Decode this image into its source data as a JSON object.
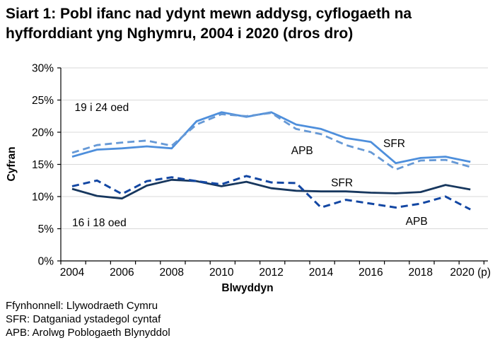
{
  "header": {
    "title_line1": "Siart 1: Pobl ifanc nad ydynt mewn addysg, cyflogaeth na",
    "title_line2": "hyfforddiant yng Nghymru, 2004 i 2020 (dros dro)"
  },
  "chart_data": {
    "type": "line",
    "title": "Siart 1: Pobl ifanc nad ydynt mewn addysg, cyflogaeth na hyfforddiant yng Nghymru, 2004 i 2020 (dros dro)",
    "xlabel": "Blwyddyn",
    "ylabel": "Cyfran",
    "x": [
      2004,
      2005,
      2006,
      2007,
      2008,
      2009,
      2010,
      2011,
      2012,
      2013,
      2014,
      2015,
      2016,
      2017,
      2018,
      2019,
      2020
    ],
    "x_tick_years": [
      2004,
      2006,
      2008,
      2010,
      2012,
      2014,
      2016,
      2018,
      2020
    ],
    "x_tick_labels": [
      "2004",
      "2006",
      "2008",
      "2010",
      "2012",
      "2014",
      "2016",
      "2018",
      "2020 (p)"
    ],
    "ylim": [
      0,
      30
    ],
    "ytick_values": [
      0,
      5,
      10,
      15,
      20,
      25,
      30
    ],
    "ytick_labels": [
      "0%",
      "5%",
      "10%",
      "15%",
      "20%",
      "25%",
      "30%"
    ],
    "grid": true,
    "legend_position": "annotated-in-plot",
    "series": [
      {
        "name": "19 i 24 oed SFR",
        "style": "solid",
        "color": "#4E8FDC",
        "width": 2.8,
        "values": [
          16.2,
          17.3,
          17.5,
          17.8,
          17.5,
          21.7,
          23.1,
          22.4,
          23.1,
          21.2,
          20.5,
          19.1,
          18.5,
          15.2,
          16.0,
          16.2,
          15.4
        ]
      },
      {
        "name": "19 i 24 oed APB",
        "style": "dashed",
        "color": "#6699D6",
        "width": 2.8,
        "values": [
          16.8,
          18.0,
          18.4,
          18.7,
          17.9,
          21.2,
          22.8,
          22.5,
          23.0,
          20.5,
          19.7,
          18.0,
          16.9,
          14.2,
          15.6,
          15.7,
          14.6
        ]
      },
      {
        "name": "16 i 18 oed SFR",
        "style": "solid",
        "color": "#17375E",
        "width": 2.8,
        "values": [
          11.2,
          10.1,
          9.7,
          11.7,
          12.6,
          12.4,
          11.6,
          12.3,
          11.3,
          10.9,
          10.8,
          10.8,
          10.6,
          10.5,
          10.7,
          11.8,
          11.1
        ]
      },
      {
        "name": "16 i 18 oed APB",
        "style": "dashed",
        "color": "#1347A3",
        "width": 3,
        "values": [
          11.6,
          12.5,
          10.4,
          12.4,
          13.0,
          12.4,
          11.9,
          13.2,
          12.2,
          12.1,
          8.3,
          9.5,
          8.9,
          8.3,
          8.9,
          10.0,
          8.0
        ]
      }
    ],
    "annotations": [
      {
        "id": "age-19-24",
        "text": "19 i 24 oed",
        "year": 2004.1,
        "value": 23.3
      },
      {
        "id": "age-16-18",
        "text": "16 i 18 oed",
        "year": 2004.0,
        "value": 5.4
      },
      {
        "id": "apb-19-24",
        "text": "APB",
        "year": 2012.8,
        "value": 16.6
      },
      {
        "id": "sfr-19-24",
        "text": "SFR",
        "year": 2016.5,
        "value": 17.7
      },
      {
        "id": "sfr-16-18",
        "text": "SFR",
        "year": 2014.4,
        "value": 11.6
      },
      {
        "id": "apb-16-18",
        "text": "APB",
        "year": 2017.4,
        "value": 5.6
      }
    ],
    "colors": {
      "axis": "#000000",
      "gridline": "#D9D9D9",
      "light_blue_solid": "#4E8FDC",
      "light_blue_dashed": "#6699D6",
      "dark_blue_solid": "#17375E",
      "dark_blue_dashed": "#1347A3"
    }
  },
  "footer": {
    "lines": [
      "Ffynhonnell: Llywodraeth Cymru",
      "SFR: Datganiad ystadegol cyntaf",
      "APB: Arolwg Poblogaeth Blynyddol"
    ]
  }
}
